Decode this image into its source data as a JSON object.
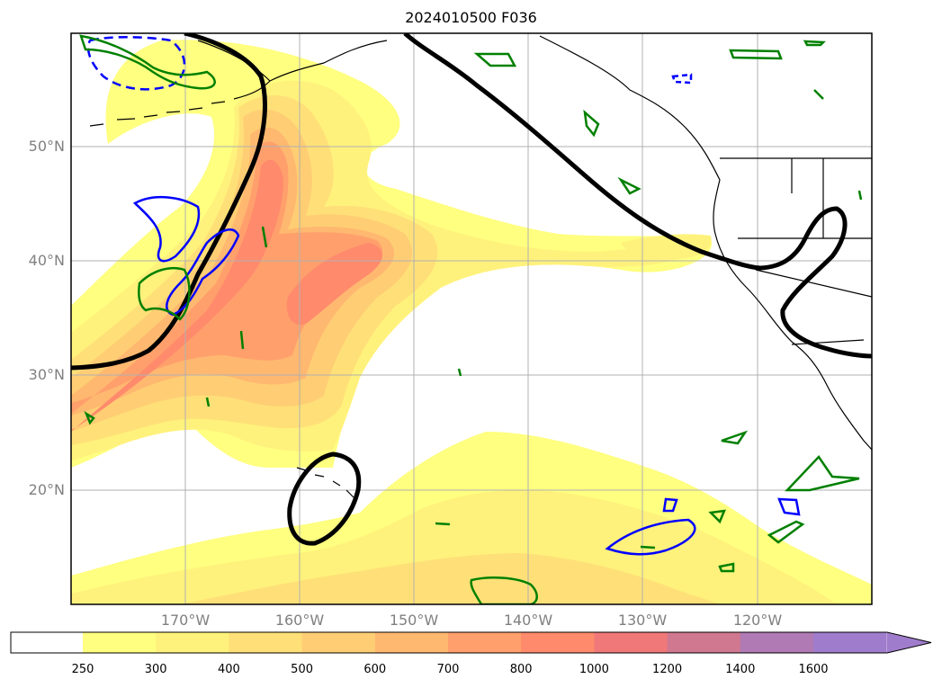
{
  "title": "2024010500 F036",
  "map": {
    "region": "North Pacific / western North America",
    "lat_labels": [
      "50°N",
      "40°N",
      "30°N",
      "20°N"
    ],
    "lon_labels": [
      "170°W",
      "160°W",
      "150°W",
      "140°W",
      "130°W",
      "120°W"
    ],
    "contour_colors": {
      "heavy_isoline": "#000000",
      "positive_contour": "#008000",
      "negative_contour": "#0000ff",
      "coastline": "#000000"
    }
  },
  "colorbar": {
    "labels": [
      "250",
      "300",
      "400",
      "500",
      "600",
      "700",
      "800",
      "1000",
      "1200",
      "1400",
      "1600"
    ],
    "colors": [
      "#ffff80",
      "#fff27c",
      "#ffe078",
      "#ffce74",
      "#ffb870",
      "#ffa06c",
      "#ff8a6c",
      "#f07878",
      "#d07890",
      "#b07ab4",
      "#a07ccc"
    ],
    "extend": "max"
  }
}
